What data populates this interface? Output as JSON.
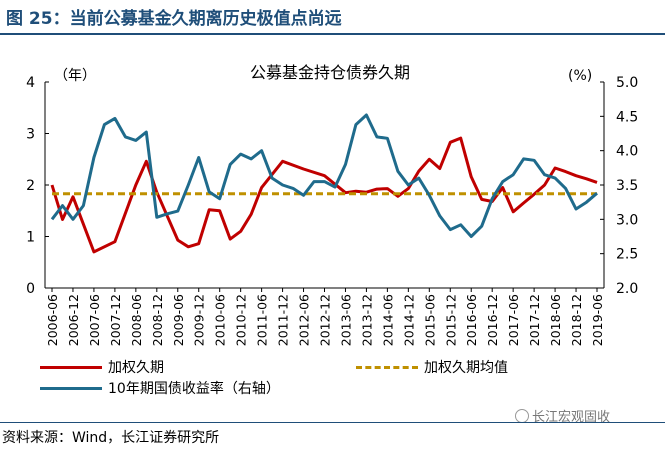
{
  "figure": {
    "title": "图 25：当前公募基金久期离历史极值点尚远",
    "source": "资料来源：Wind，长江证券研究所",
    "watermark": "长江宏观固收"
  },
  "chart_data": {
    "type": "line",
    "title": "公募基金持仓债券久期",
    "left_unit": "（年）",
    "right_unit": "(%)",
    "x_ticks": [
      "2006-06",
      "2006-12",
      "2007-06",
      "2007-12",
      "2008-06",
      "2008-12",
      "2009-06",
      "2009-12",
      "2010-06",
      "2010-12",
      "2011-06",
      "2011-12",
      "2012-06",
      "2012-12",
      "2013-06",
      "2013-12",
      "2014-06",
      "2014-12",
      "2015-06",
      "2015-12",
      "2016-06",
      "2016-12",
      "2017-06",
      "2017-12",
      "2018-06",
      "2018-12",
      "2019-06"
    ],
    "y_left": {
      "min": 0,
      "max": 4,
      "ticks": [
        "0",
        "1",
        "2",
        "3",
        "4"
      ]
    },
    "y_right": {
      "min": 2.0,
      "max": 5.0,
      "ticks": [
        "2.0",
        "2.5",
        "3.0",
        "3.5",
        "4.0",
        "4.5",
        "5.0"
      ]
    },
    "series": [
      {
        "name": "加权久期",
        "axis": "left",
        "color": "#c00000",
        "style": "solid",
        "t": [
          0,
          0.5,
          1,
          2,
          3,
          4,
          4.5,
          5,
          6,
          6.5,
          7,
          7.5,
          8,
          8.5,
          9,
          9.5,
          10,
          11,
          12,
          13,
          14,
          14.5,
          15,
          15.5,
          16,
          16.5,
          17,
          17.5,
          18,
          18.5,
          19,
          19.5,
          20,
          20.5,
          21,
          21.5,
          22,
          22.5,
          23,
          23.5,
          24,
          24.5,
          25,
          25.5,
          26
        ],
        "values": [
          2.0,
          1.33,
          1.77,
          0.7,
          0.9,
          2.0,
          2.46,
          1.86,
          0.93,
          0.8,
          0.86,
          1.52,
          1.5,
          0.95,
          1.1,
          1.43,
          1.95,
          2.46,
          2.31,
          2.18,
          1.85,
          1.88,
          1.86,
          1.92,
          1.93,
          1.78,
          1.93,
          2.27,
          2.5,
          2.32,
          2.83,
          2.91,
          2.16,
          1.72,
          1.68,
          1.95,
          1.48,
          1.65,
          1.82,
          2.0,
          2.33,
          2.26,
          2.18,
          2.12,
          2.05
        ]
      },
      {
        "name": "加权久期均值",
        "axis": "left",
        "color": "#bf9000",
        "style": "dashed",
        "t": [
          0,
          26
        ],
        "values": [
          1.83,
          1.83
        ]
      },
      {
        "name": "10年期国债收益率（右轴）",
        "axis": "right",
        "color": "#1f6b8c",
        "style": "solid",
        "t": [
          0,
          0.5,
          1,
          1.5,
          2,
          2.5,
          3,
          3.5,
          4,
          4.5,
          5,
          5.5,
          6,
          6.5,
          7,
          7.5,
          8,
          8.5,
          9,
          9.5,
          10,
          10.5,
          11,
          11.5,
          12,
          12.5,
          13,
          13.5,
          14,
          14.5,
          15,
          15.5,
          16,
          16.5,
          17,
          17.5,
          18,
          18.5,
          19,
          19.5,
          20,
          20.5,
          21,
          21.5,
          22,
          22.5,
          23,
          23.5,
          24,
          24.5,
          25,
          25.5,
          26
        ],
        "values": [
          3.0,
          3.2,
          3.0,
          3.2,
          3.9,
          4.38,
          4.47,
          4.2,
          4.15,
          4.27,
          3.03,
          3.08,
          3.12,
          3.5,
          3.9,
          3.4,
          3.3,
          3.8,
          3.95,
          3.88,
          4.0,
          3.6,
          3.5,
          3.45,
          3.35,
          3.55,
          3.55,
          3.47,
          3.8,
          4.38,
          4.52,
          4.2,
          4.18,
          3.7,
          3.5,
          3.6,
          3.35,
          3.05,
          2.85,
          2.92,
          2.75,
          2.9,
          3.3,
          3.55,
          3.65,
          3.88,
          3.86,
          3.65,
          3.6,
          3.45,
          3.15,
          3.25,
          3.38
        ]
      }
    ]
  }
}
